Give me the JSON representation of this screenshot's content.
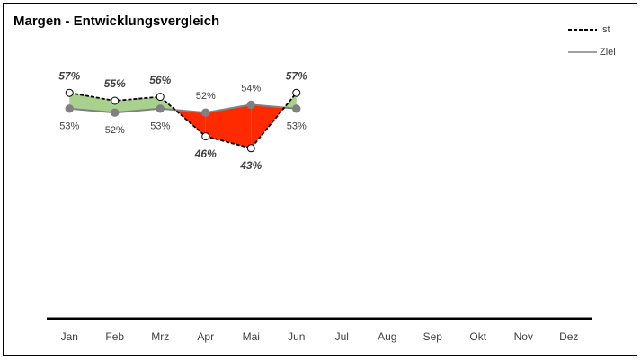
{
  "chart_data": {
    "type": "line",
    "title": "Margen - Entwicklungsvergleich",
    "categories": [
      "Jan",
      "Feb",
      "Mrz",
      "Apr",
      "Mai",
      "Jun",
      "Jul",
      "Aug",
      "Sep",
      "Okt",
      "Nov",
      "Dez"
    ],
    "series": [
      {
        "name": "Ist",
        "color": "#000000",
        "values": [
          57,
          55,
          56,
          46,
          43,
          57,
          null,
          null,
          null,
          null,
          null,
          null
        ],
        "value_labels": [
          "57%",
          "55%",
          "56%",
          "46%",
          "43%",
          "57%",
          null,
          null,
          null,
          null,
          null,
          null
        ]
      },
      {
        "name": "Ziel",
        "color": "#808080",
        "values": [
          53,
          52,
          53,
          52,
          54,
          53,
          null,
          null,
          null,
          null,
          null,
          null
        ],
        "value_labels": [
          "53%",
          "52%",
          "53%",
          "52%",
          "54%",
          "53%",
          null,
          null,
          null,
          null,
          null,
          null
        ]
      }
    ],
    "above_color": "#a9d18e",
    "below_color": "#ff2a00",
    "ylim": [
      0,
      80
    ],
    "legend": "top-right",
    "grid": false
  }
}
